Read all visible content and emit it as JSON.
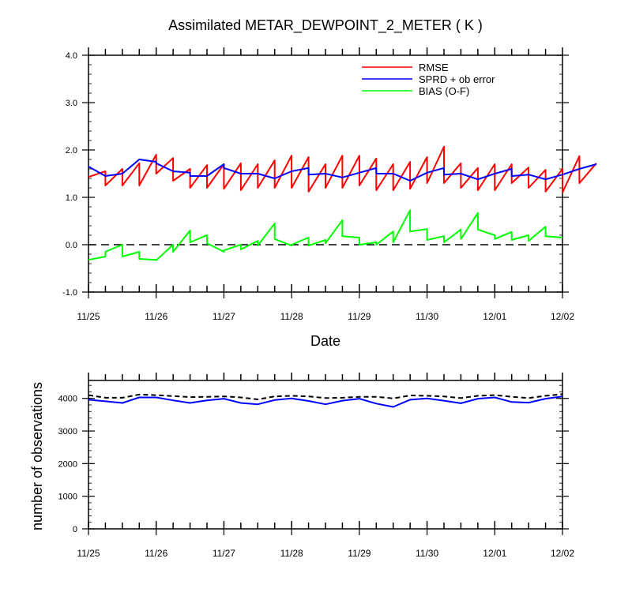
{
  "chart_data": [
    {
      "type": "line",
      "title": "Assimilated METAR_DEWPOINT_2_METER ( K )",
      "xlabel": "Date",
      "ylabel": "",
      "xlim": [
        "11/25",
        "12/02"
      ],
      "ylim": [
        -1.0,
        4.0
      ],
      "ytick_labels": [
        "-1.0",
        "0.0",
        "1.0",
        "2.0",
        "3.0",
        "4.0"
      ],
      "xtick_labels": [
        "11/25",
        "11/26",
        "11/27",
        "11/28",
        "11/29",
        "11/30",
        "12/01",
        "12/02"
      ],
      "legend_position": "top-right",
      "zero_line": "dashed",
      "colors": {
        "RMSE": "#ff0000",
        "SPRD + ob error": "#0000ff",
        "BIAS (O-F)": "#00ff00"
      },
      "series": [
        {
          "name": "RMSE",
          "values": [
            [
              0,
              1.43
            ],
            [
              0.25,
              1.55
            ],
            [
              0.25,
              1.25
            ],
            [
              0.5,
              1.6
            ],
            [
              0.5,
              1.25
            ],
            [
              0.75,
              1.72
            ],
            [
              0.75,
              1.25
            ],
            [
              1.0,
              1.9
            ],
            [
              1.0,
              1.5
            ],
            [
              1.25,
              1.83
            ],
            [
              1.25,
              1.35
            ],
            [
              1.5,
              1.6
            ],
            [
              1.5,
              1.2
            ],
            [
              1.75,
              1.68
            ],
            [
              1.75,
              1.2
            ],
            [
              2.0,
              1.7
            ],
            [
              2.0,
              1.18
            ],
            [
              2.25,
              1.72
            ],
            [
              2.25,
              1.15
            ],
            [
              2.5,
              1.7
            ],
            [
              2.5,
              1.2
            ],
            [
              2.75,
              1.78
            ],
            [
              2.75,
              1.2
            ],
            [
              3.0,
              1.88
            ],
            [
              3.0,
              1.2
            ],
            [
              3.25,
              1.85
            ],
            [
              3.25,
              1.12
            ],
            [
              3.5,
              1.7
            ],
            [
              3.5,
              1.2
            ],
            [
              3.75,
              1.88
            ],
            [
              3.75,
              1.2
            ],
            [
              4.0,
              1.88
            ],
            [
              4.0,
              1.25
            ],
            [
              4.25,
              1.82
            ],
            [
              4.25,
              1.15
            ],
            [
              4.5,
              1.7
            ],
            [
              4.5,
              1.15
            ],
            [
              4.75,
              1.75
            ],
            [
              4.75,
              1.18
            ],
            [
              5.0,
              1.85
            ],
            [
              5.0,
              1.3
            ],
            [
              5.25,
              2.07
            ],
            [
              5.25,
              1.3
            ],
            [
              5.5,
              1.72
            ],
            [
              5.5,
              1.2
            ],
            [
              5.75,
              1.62
            ],
            [
              5.75,
              1.15
            ],
            [
              6.0,
              1.7
            ],
            [
              6.0,
              1.15
            ],
            [
              6.25,
              1.7
            ],
            [
              6.25,
              1.3
            ],
            [
              6.5,
              1.63
            ],
            [
              6.5,
              1.2
            ],
            [
              6.75,
              1.58
            ],
            [
              6.75,
              1.12
            ],
            [
              7.0,
              1.6
            ],
            [
              7.0,
              1.1
            ],
            [
              7.25,
              1.87
            ],
            [
              7.25,
              1.3
            ],
            [
              7.5,
              1.72
            ]
          ]
        },
        {
          "name": "SPRD + ob error",
          "values": [
            [
              0,
              1.65
            ],
            [
              0.25,
              1.45
            ],
            [
              0.5,
              1.5
            ],
            [
              0.75,
              1.8
            ],
            [
              1.0,
              1.75
            ],
            [
              1.0,
              1.72
            ],
            [
              1.25,
              1.55
            ],
            [
              1.5,
              1.52
            ],
            [
              1.5,
              1.45
            ],
            [
              1.75,
              1.45
            ],
            [
              2.0,
              1.7
            ],
            [
              2.0,
              1.62
            ],
            [
              2.25,
              1.5
            ],
            [
              2.5,
              1.5
            ],
            [
              2.75,
              1.4
            ],
            [
              3.0,
              1.55
            ],
            [
              3.25,
              1.62
            ],
            [
              3.25,
              1.48
            ],
            [
              3.5,
              1.5
            ],
            [
              3.75,
              1.42
            ],
            [
              4.0,
              1.52
            ],
            [
              4.25,
              1.62
            ],
            [
              4.25,
              1.5
            ],
            [
              4.5,
              1.5
            ],
            [
              4.75,
              1.35
            ],
            [
              5.0,
              1.52
            ],
            [
              5.25,
              1.62
            ],
            [
              5.25,
              1.48
            ],
            [
              5.5,
              1.5
            ],
            [
              5.75,
              1.38
            ],
            [
              6.0,
              1.5
            ],
            [
              6.25,
              1.6
            ],
            [
              6.25,
              1.45
            ],
            [
              6.5,
              1.48
            ],
            [
              6.75,
              1.38
            ],
            [
              7.0,
              1.48
            ],
            [
              7.25,
              1.6
            ],
            [
              7.5,
              1.7
            ]
          ]
        },
        {
          "name": "BIAS (O-F)",
          "values": [
            [
              0,
              -0.32
            ],
            [
              0.25,
              -0.25
            ],
            [
              0.25,
              -0.15
            ],
            [
              0.5,
              0.0
            ],
            [
              0.5,
              -0.25
            ],
            [
              0.75,
              -0.15
            ],
            [
              0.75,
              -0.3
            ],
            [
              1.0,
              -0.32
            ],
            [
              1.0,
              -0.33
            ],
            [
              1.25,
              0.0
            ],
            [
              1.25,
              -0.15
            ],
            [
              1.5,
              0.3
            ],
            [
              1.5,
              0.05
            ],
            [
              1.75,
              0.2
            ],
            [
              1.75,
              0.03
            ],
            [
              2.0,
              -0.15
            ],
            [
              2.0,
              -0.12
            ],
            [
              2.25,
              0.0
            ],
            [
              2.25,
              -0.1
            ],
            [
              2.5,
              0.08
            ],
            [
              2.5,
              -0.02
            ],
            [
              2.75,
              0.45
            ],
            [
              2.75,
              0.12
            ],
            [
              3.0,
              -0.02
            ],
            [
              3.0,
              0.0
            ],
            [
              3.25,
              0.15
            ],
            [
              3.25,
              -0.02
            ],
            [
              3.5,
              0.1
            ],
            [
              3.5,
              0.03
            ],
            [
              3.75,
              0.52
            ],
            [
              3.75,
              0.18
            ],
            [
              4.0,
              0.15
            ],
            [
              4.0,
              0.0
            ],
            [
              4.25,
              0.05
            ],
            [
              4.25,
              0.0
            ],
            [
              4.5,
              0.28
            ],
            [
              4.5,
              0.05
            ],
            [
              4.75,
              0.73
            ],
            [
              4.75,
              0.28
            ],
            [
              5.0,
              0.33
            ],
            [
              5.0,
              0.1
            ],
            [
              5.25,
              0.18
            ],
            [
              5.25,
              0.05
            ],
            [
              5.5,
              0.32
            ],
            [
              5.5,
              0.12
            ],
            [
              5.75,
              0.67
            ],
            [
              5.75,
              0.32
            ],
            [
              6.0,
              0.2
            ],
            [
              6.0,
              0.12
            ],
            [
              6.25,
              0.27
            ],
            [
              6.25,
              0.1
            ],
            [
              6.5,
              0.2
            ],
            [
              6.5,
              0.08
            ],
            [
              6.75,
              0.38
            ],
            [
              6.75,
              0.18
            ],
            [
              7.0,
              0.15
            ]
          ]
        }
      ]
    },
    {
      "type": "line",
      "title": "",
      "xlabel": "",
      "ylabel": "number of observations",
      "xlim": [
        "11/25",
        "12/02"
      ],
      "ylim": [
        0,
        4550
      ],
      "ytick_labels": [
        "0",
        "1000",
        "2000",
        "3000",
        "4000"
      ],
      "xtick_labels": [
        "11/25",
        "11/26",
        "11/27",
        "11/28",
        "11/29",
        "11/30",
        "12/01",
        "12/02"
      ],
      "series": [
        {
          "line_style": "dashed",
          "color": "#000000",
          "values": [
            [
              0,
              4100
            ],
            [
              0.25,
              4020
            ],
            [
              0.5,
              4020
            ],
            [
              0.75,
              4120
            ],
            [
              1.0,
              4100
            ],
            [
              1.25,
              4070
            ],
            [
              1.5,
              4040
            ],
            [
              1.75,
              4050
            ],
            [
              2.0,
              4060
            ],
            [
              2.25,
              4030
            ],
            [
              2.5,
              3970
            ],
            [
              2.75,
              4060
            ],
            [
              3.0,
              4080
            ],
            [
              3.25,
              4060
            ],
            [
              3.5,
              4010
            ],
            [
              3.75,
              4020
            ],
            [
              4.0,
              4050
            ],
            [
              4.25,
              4050
            ],
            [
              4.5,
              4000
            ],
            [
              4.75,
              4090
            ],
            [
              5.0,
              4080
            ],
            [
              5.25,
              4060
            ],
            [
              5.5,
              4010
            ],
            [
              5.75,
              4080
            ],
            [
              6.0,
              4100
            ],
            [
              6.25,
              4050
            ],
            [
              6.5,
              4010
            ],
            [
              6.75,
              4080
            ],
            [
              7.0,
              4130
            ]
          ]
        },
        {
          "line_style": "solid",
          "color": "#0000ff",
          "values": [
            [
              0,
              3960
            ],
            [
              0.25,
              3910
            ],
            [
              0.5,
              3860
            ],
            [
              0.75,
              4030
            ],
            [
              1.0,
              4030
            ],
            [
              1.25,
              3940
            ],
            [
              1.5,
              3860
            ],
            [
              1.75,
              3940
            ],
            [
              2.0,
              3990
            ],
            [
              2.25,
              3860
            ],
            [
              2.5,
              3820
            ],
            [
              2.75,
              3950
            ],
            [
              3.0,
              4000
            ],
            [
              3.25,
              3920
            ],
            [
              3.5,
              3820
            ],
            [
              3.75,
              3930
            ],
            [
              4.0,
              3990
            ],
            [
              4.25,
              3840
            ],
            [
              4.5,
              3740
            ],
            [
              4.75,
              3960
            ],
            [
              5.0,
              4000
            ],
            [
              5.25,
              3930
            ],
            [
              5.5,
              3850
            ],
            [
              5.75,
              3990
            ],
            [
              6.0,
              4030
            ],
            [
              6.25,
              3890
            ],
            [
              6.5,
              3870
            ],
            [
              6.75,
              3990
            ],
            [
              7.0,
              4060
            ]
          ]
        }
      ]
    }
  ]
}
